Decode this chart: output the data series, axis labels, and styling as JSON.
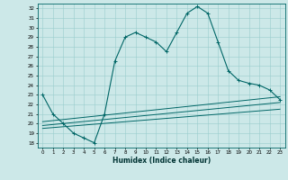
{
  "xlabel": "Humidex (Indice chaleur)",
  "background_color": "#cce8e8",
  "grid_color": "#99cccc",
  "line_color": "#006666",
  "xlim": [
    -0.5,
    23.5
  ],
  "ylim": [
    17.5,
    32.5
  ],
  "xticks": [
    0,
    1,
    2,
    3,
    4,
    5,
    6,
    7,
    8,
    9,
    10,
    11,
    12,
    13,
    14,
    15,
    16,
    17,
    18,
    19,
    20,
    21,
    22,
    23
  ],
  "yticks": [
    18,
    19,
    20,
    21,
    22,
    23,
    24,
    25,
    26,
    27,
    28,
    29,
    30,
    31,
    32
  ],
  "line1_x": [
    0,
    1,
    2,
    3,
    4,
    5,
    6,
    7,
    8,
    9,
    10,
    11,
    12,
    13,
    14,
    15,
    16,
    17,
    18,
    19,
    20,
    21,
    22,
    23
  ],
  "line1_y": [
    23.0,
    21.0,
    20.0,
    19.0,
    18.5,
    18.0,
    21.0,
    26.5,
    29.0,
    29.5,
    29.0,
    28.5,
    27.5,
    29.5,
    31.5,
    32.2,
    31.5,
    28.5,
    25.5,
    24.5,
    24.2,
    24.0,
    23.5,
    22.5
  ],
  "line2_x": [
    0,
    23
  ],
  "line2_y": [
    19.5,
    21.5
  ],
  "line3_x": [
    0,
    23
  ],
  "line3_y": [
    19.8,
    22.2
  ],
  "line4_x": [
    0,
    23
  ],
  "line4_y": [
    20.2,
    22.8
  ]
}
